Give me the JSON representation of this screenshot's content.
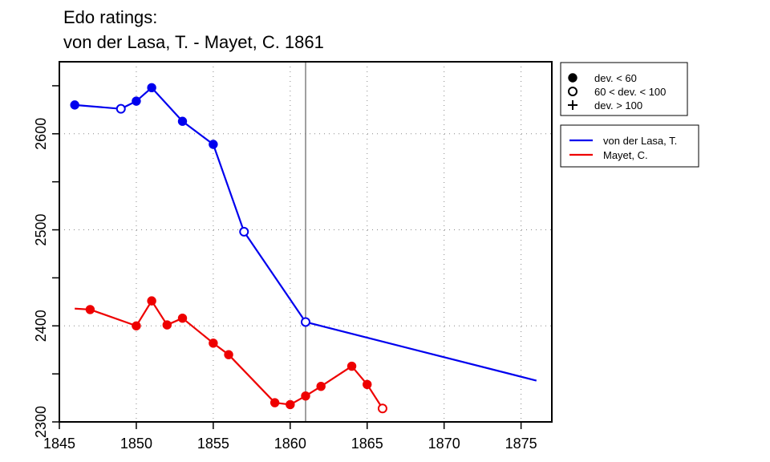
{
  "chart_data": {
    "type": "line",
    "title_line1": "Edo ratings:",
    "title_line2": "von der Lasa, T. - Mayet, C. 1861",
    "xlabel": "",
    "ylabel": "",
    "xlim": [
      1845,
      1877
    ],
    "ylim": [
      2300,
      2675
    ],
    "x_ticks": [
      {
        "value": 1845,
        "label": "1845"
      },
      {
        "value": 1850,
        "label": "1850"
      },
      {
        "value": 1855,
        "label": "1855"
      },
      {
        "value": 1860,
        "label": "1860"
      },
      {
        "value": 1865,
        "label": "1865"
      },
      {
        "value": 1870,
        "label": "1870"
      },
      {
        "value": 1875,
        "label": "1875"
      }
    ],
    "y_ticks": [
      {
        "value": 2300,
        "label": "2300"
      },
      {
        "value": 2400,
        "label": "2400"
      },
      {
        "value": 2500,
        "label": "2500"
      },
      {
        "value": 2600,
        "label": "2600"
      }
    ],
    "y_minor_ticks": [
      2350,
      2450,
      2550,
      2650
    ],
    "grid": true,
    "vline_x": 1861,
    "dev_legend": [
      {
        "marker": "filled",
        "label": "dev. < 60"
      },
      {
        "marker": "open",
        "label": "60 < dev. < 100"
      },
      {
        "marker": "plus",
        "label": "dev. > 100"
      }
    ],
    "legend_position": "right",
    "series": [
      {
        "name": "von der Lasa, T.",
        "color": "#0000ee",
        "points": [
          {
            "x": 1846,
            "y": 2630,
            "marker": "filled"
          },
          {
            "x": 1849,
            "y": 2626,
            "marker": "open"
          },
          {
            "x": 1850,
            "y": 2634,
            "marker": "filled"
          },
          {
            "x": 1851,
            "y": 2648,
            "marker": "filled"
          },
          {
            "x": 1853,
            "y": 2613,
            "marker": "filled"
          },
          {
            "x": 1855,
            "y": 2589,
            "marker": "filled"
          },
          {
            "x": 1857,
            "y": 2498,
            "marker": "open"
          },
          {
            "x": 1861,
            "y": 2404,
            "marker": "open"
          },
          {
            "x": 1876,
            "y": 2343,
            "marker": "none"
          }
        ]
      },
      {
        "name": "Mayet, C.",
        "color": "#ee0000",
        "points": [
          {
            "x": 1846,
            "y": 2418,
            "marker": "none"
          },
          {
            "x": 1847,
            "y": 2417,
            "marker": "filled"
          },
          {
            "x": 1850,
            "y": 2400,
            "marker": "filled"
          },
          {
            "x": 1851,
            "y": 2426,
            "marker": "filled"
          },
          {
            "x": 1852,
            "y": 2401,
            "marker": "filled"
          },
          {
            "x": 1853,
            "y": 2408,
            "marker": "filled"
          },
          {
            "x": 1855,
            "y": 2382,
            "marker": "filled"
          },
          {
            "x": 1856,
            "y": 2370,
            "marker": "filled"
          },
          {
            "x": 1859,
            "y": 2320,
            "marker": "filled"
          },
          {
            "x": 1860,
            "y": 2318,
            "marker": "filled"
          },
          {
            "x": 1861,
            "y": 2327,
            "marker": "filled"
          },
          {
            "x": 1862,
            "y": 2337,
            "marker": "filled"
          },
          {
            "x": 1864,
            "y": 2358,
            "marker": "filled"
          },
          {
            "x": 1865,
            "y": 2339,
            "marker": "filled"
          },
          {
            "x": 1866,
            "y": 2314,
            "marker": "open"
          }
        ]
      }
    ]
  }
}
